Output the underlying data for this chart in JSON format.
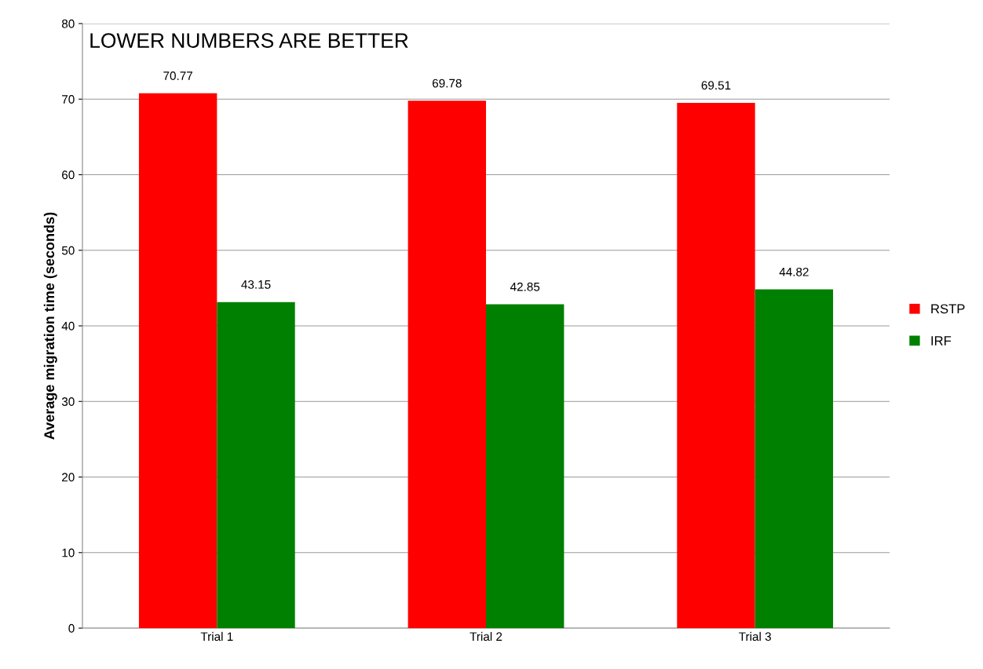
{
  "chart_data": {
    "type": "bar",
    "ylabel": "Average migration time (seconds)",
    "annotations": [
      "LOWER NUMBERS ARE BETTER"
    ],
    "categories": [
      "Trial 1",
      "Trial 2",
      "Trial 3"
    ],
    "series": [
      {
        "name": "RSTP",
        "color": "#ff0000",
        "values": [
          70.77,
          69.78,
          69.51
        ]
      },
      {
        "name": "IRF",
        "color": "#008000",
        "values": [
          43.15,
          42.85,
          44.82
        ]
      }
    ],
    "ylim": [
      0,
      80
    ],
    "yticks": [
      0,
      10,
      20,
      30,
      40,
      50,
      60,
      70,
      80
    ],
    "grid": "y",
    "legend": "right",
    "data_labels": true
  }
}
